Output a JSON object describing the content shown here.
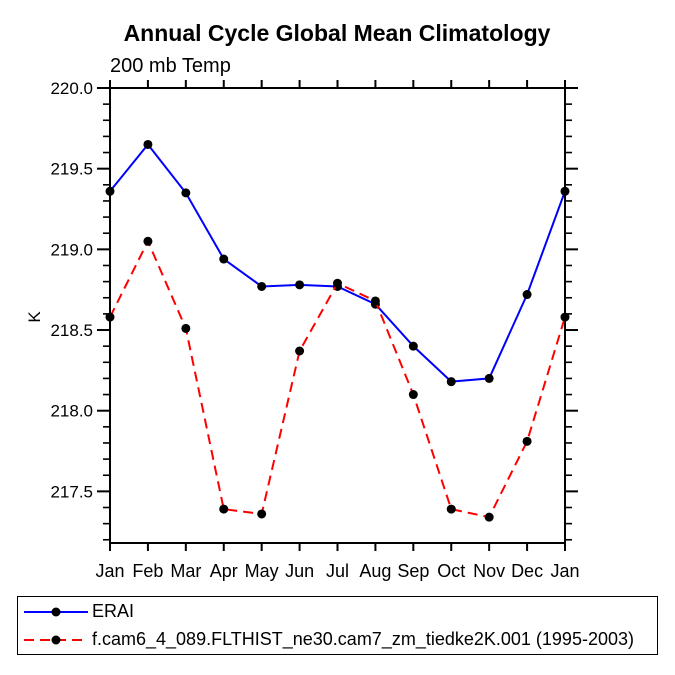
{
  "chart_data": {
    "type": "line",
    "title": "Annual Cycle Global Mean Climatology",
    "subtitle": "200 mb Temp",
    "ylabel": "K",
    "xlabel": "",
    "categories": [
      "Jan",
      "Feb",
      "Mar",
      "Apr",
      "May",
      "Jun",
      "Jul",
      "Aug",
      "Sep",
      "Oct",
      "Nov",
      "Dec",
      "Jan"
    ],
    "series": [
      {
        "name": "ERAI",
        "color": "#0000ff",
        "line_style": "solid",
        "marker": "filled-circle",
        "marker_color": "#000000",
        "values": [
          219.36,
          219.65,
          219.35,
          218.94,
          218.77,
          218.78,
          218.77,
          218.66,
          218.4,
          218.18,
          218.2,
          218.72,
          219.36
        ]
      },
      {
        "name": "f.cam6_4_089.FLTHIST_ne30.cam7_zm_tiedke2K.001 (1995-2003)",
        "color": "#ff0000",
        "line_style": "dashed",
        "marker": "filled-circle",
        "marker_color": "#000000",
        "values": [
          218.58,
          219.05,
          218.51,
          217.39,
          217.36,
          218.37,
          218.79,
          218.68,
          218.1,
          217.39,
          217.34,
          217.81,
          218.58
        ]
      }
    ],
    "ylim": [
      217.18,
      220.0
    ],
    "yticks_major": [
      220.0,
      219.5,
      219.0,
      218.5,
      218.0,
      217.5
    ],
    "ytick_labels": [
      "220.0",
      "219.5",
      "219.0",
      "218.5",
      "218.0",
      "217.5"
    ],
    "y_minor_tick_step": 0.1,
    "grid": "off",
    "frame": "box",
    "legend_position": "bottom-left-box",
    "axis_color": "#000000",
    "background_color": "#ffffff"
  }
}
